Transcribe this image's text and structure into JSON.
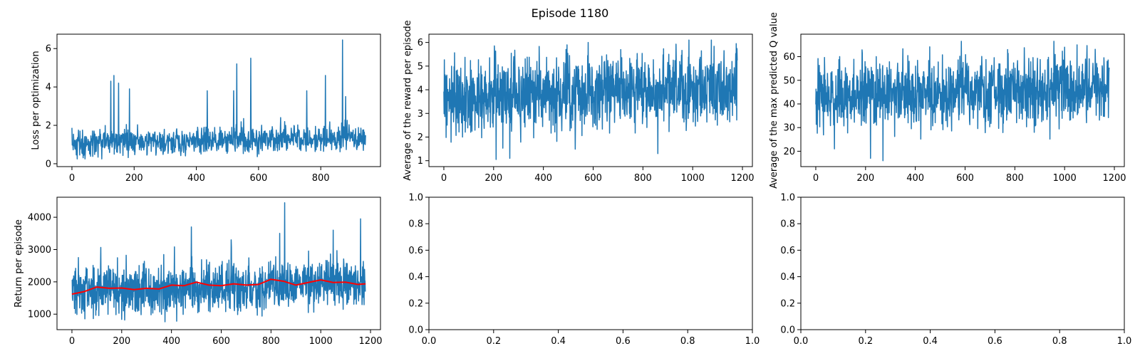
{
  "figure": {
    "suptitle": "Episode 1180"
  },
  "colors": {
    "main_line": "#1f77b4",
    "moving_average": "#ff0000",
    "axes": "#000000",
    "background": "#ffffff"
  },
  "chart_data": [
    {
      "type": "line",
      "panel": "top-left",
      "xlabel": "",
      "ylabel": "Loss per optimization",
      "xlim": [
        -48,
        992
      ],
      "ylim": [
        -0.15,
        6.75
      ],
      "xticks": [
        0,
        200,
        400,
        600,
        800
      ],
      "yticks": [
        0,
        2,
        4,
        6
      ],
      "grid": false,
      "series": [
        {
          "style": "noisy",
          "color": "#1f77b4",
          "n": 945,
          "baseline": 1.05,
          "trend_end": 1.35,
          "noise": 0.45,
          "floor": 0.25,
          "ceiling": 3.2,
          "spikes": [
            {
              "x": 135,
              "y": 4.6
            },
            {
              "x": 125,
              "y": 4.3
            },
            {
              "x": 150,
              "y": 4.2
            },
            {
              "x": 185,
              "y": 3.9
            },
            {
              "x": 435,
              "y": 3.8
            },
            {
              "x": 520,
              "y": 3.8
            },
            {
              "x": 530,
              "y": 5.2
            },
            {
              "x": 575,
              "y": 5.5
            },
            {
              "x": 755,
              "y": 3.8
            },
            {
              "x": 815,
              "y": 4.6
            },
            {
              "x": 870,
              "y": 6.45
            },
            {
              "x": 880,
              "y": 3.5
            }
          ]
        }
      ]
    },
    {
      "type": "line",
      "panel": "top-middle",
      "xlabel": "",
      "ylabel": "Average of the reward per episode",
      "xlim": [
        -60,
        1240
      ],
      "ylim": [
        0.75,
        6.35
      ],
      "xticks": [
        0,
        200,
        400,
        600,
        800,
        1000,
        1200
      ],
      "yticks": [
        1,
        2,
        3,
        4,
        5,
        6
      ],
      "grid": false,
      "series": [
        {
          "style": "noisy",
          "color": "#1f77b4",
          "n": 1180,
          "baseline": 3.6,
          "trend_end": 4.1,
          "noise": 1.0,
          "floor": 1.05,
          "ceiling": 6.1,
          "spikes": [
            {
              "x": 210,
              "y": 1.05
            },
            {
              "x": 265,
              "y": 1.1
            },
            {
              "x": 860,
              "y": 1.3
            },
            {
              "x": 580,
              "y": 6.0
            },
            {
              "x": 985,
              "y": 6.1
            },
            {
              "x": 495,
              "y": 5.9
            }
          ]
        }
      ]
    },
    {
      "type": "line",
      "panel": "top-right",
      "xlabel": "",
      "ylabel": "Average of the max predicted Q value",
      "xlim": [
        -60,
        1240
      ],
      "ylim": [
        13.5,
        69.5
      ],
      "xticks": [
        0,
        200,
        400,
        600,
        800,
        1000,
        1200
      ],
      "yticks": [
        20,
        30,
        40,
        50,
        60
      ],
      "grid": false,
      "series": [
        {
          "style": "noisy",
          "color": "#1f77b4",
          "n": 1180,
          "baseline": 43,
          "trend_end": 46,
          "noise": 9,
          "floor": 16,
          "ceiling": 66.5,
          "spikes": [
            {
              "x": 270,
              "y": 16
            },
            {
              "x": 75,
              "y": 21
            },
            {
              "x": 220,
              "y": 17
            },
            {
              "x": 585,
              "y": 66.5
            },
            {
              "x": 1050,
              "y": 65
            },
            {
              "x": 1000,
              "y": 64
            }
          ]
        }
      ]
    },
    {
      "type": "line",
      "panel": "bottom-left",
      "xlabel": "",
      "ylabel": "Return per episode",
      "xlim": [
        -60,
        1240
      ],
      "ylim": [
        520,
        4620
      ],
      "xticks": [
        0,
        200,
        400,
        600,
        800,
        1000,
        1200
      ],
      "yticks": [
        1000,
        2000,
        3000,
        4000
      ],
      "grid": false,
      "series": [
        {
          "style": "noisy",
          "color": "#1f77b4",
          "n": 1180,
          "baseline": 1700,
          "trend_end": 1950,
          "noise": 480,
          "floor": 680,
          "ceiling": 3400,
          "spikes": [
            {
              "x": 855,
              "y": 4450
            },
            {
              "x": 1160,
              "y": 3950
            },
            {
              "x": 480,
              "y": 3700
            },
            {
              "x": 1050,
              "y": 3600
            },
            {
              "x": 835,
              "y": 3500
            },
            {
              "x": 640,
              "y": 3300
            }
          ]
        },
        {
          "name": "",
          "style": "smooth",
          "color": "#ff0000",
          "x": [
            0,
            50,
            100,
            150,
            200,
            250,
            300,
            350,
            400,
            450,
            500,
            550,
            600,
            650,
            700,
            750,
            800,
            850,
            900,
            950,
            1000,
            1050,
            1100,
            1150,
            1180
          ],
          "values": [
            1620,
            1700,
            1840,
            1800,
            1810,
            1760,
            1800,
            1780,
            1900,
            1880,
            1990,
            1900,
            1880,
            1940,
            1900,
            1920,
            2080,
            2020,
            1900,
            1980,
            2060,
            1980,
            1990,
            1920,
            1940
          ]
        }
      ]
    },
    {
      "type": "line",
      "panel": "bottom-middle",
      "xlabel": "",
      "ylabel": "",
      "xlim": [
        0,
        1
      ],
      "ylim": [
        0,
        1
      ],
      "xticks": [
        0.0,
        0.2,
        0.4,
        0.6,
        0.8,
        1.0
      ],
      "yticks": [
        0.0,
        0.2,
        0.4,
        0.6,
        0.8,
        1.0
      ],
      "xtick_labels": [
        "0.0",
        "0.2",
        "0.4",
        "0.6",
        "0.8",
        "1.0"
      ],
      "ytick_labels": [
        "0.0",
        "0.2",
        "0.4",
        "0.6",
        "0.8",
        "1.0"
      ],
      "grid": false,
      "series": []
    },
    {
      "type": "line",
      "panel": "bottom-right",
      "xlabel": "",
      "ylabel": "",
      "xlim": [
        0,
        1
      ],
      "ylim": [
        0,
        1
      ],
      "xticks": [
        0.0,
        0.2,
        0.4,
        0.6,
        0.8,
        1.0
      ],
      "yticks": [
        0.0,
        0.2,
        0.4,
        0.6,
        0.8,
        1.0
      ],
      "xtick_labels": [
        "0.0",
        "0.2",
        "0.4",
        "0.6",
        "0.8",
        "1.0"
      ],
      "ytick_labels": [
        "0.0",
        "0.2",
        "0.4",
        "0.6",
        "0.8",
        "1.0"
      ],
      "grid": false,
      "series": []
    }
  ]
}
